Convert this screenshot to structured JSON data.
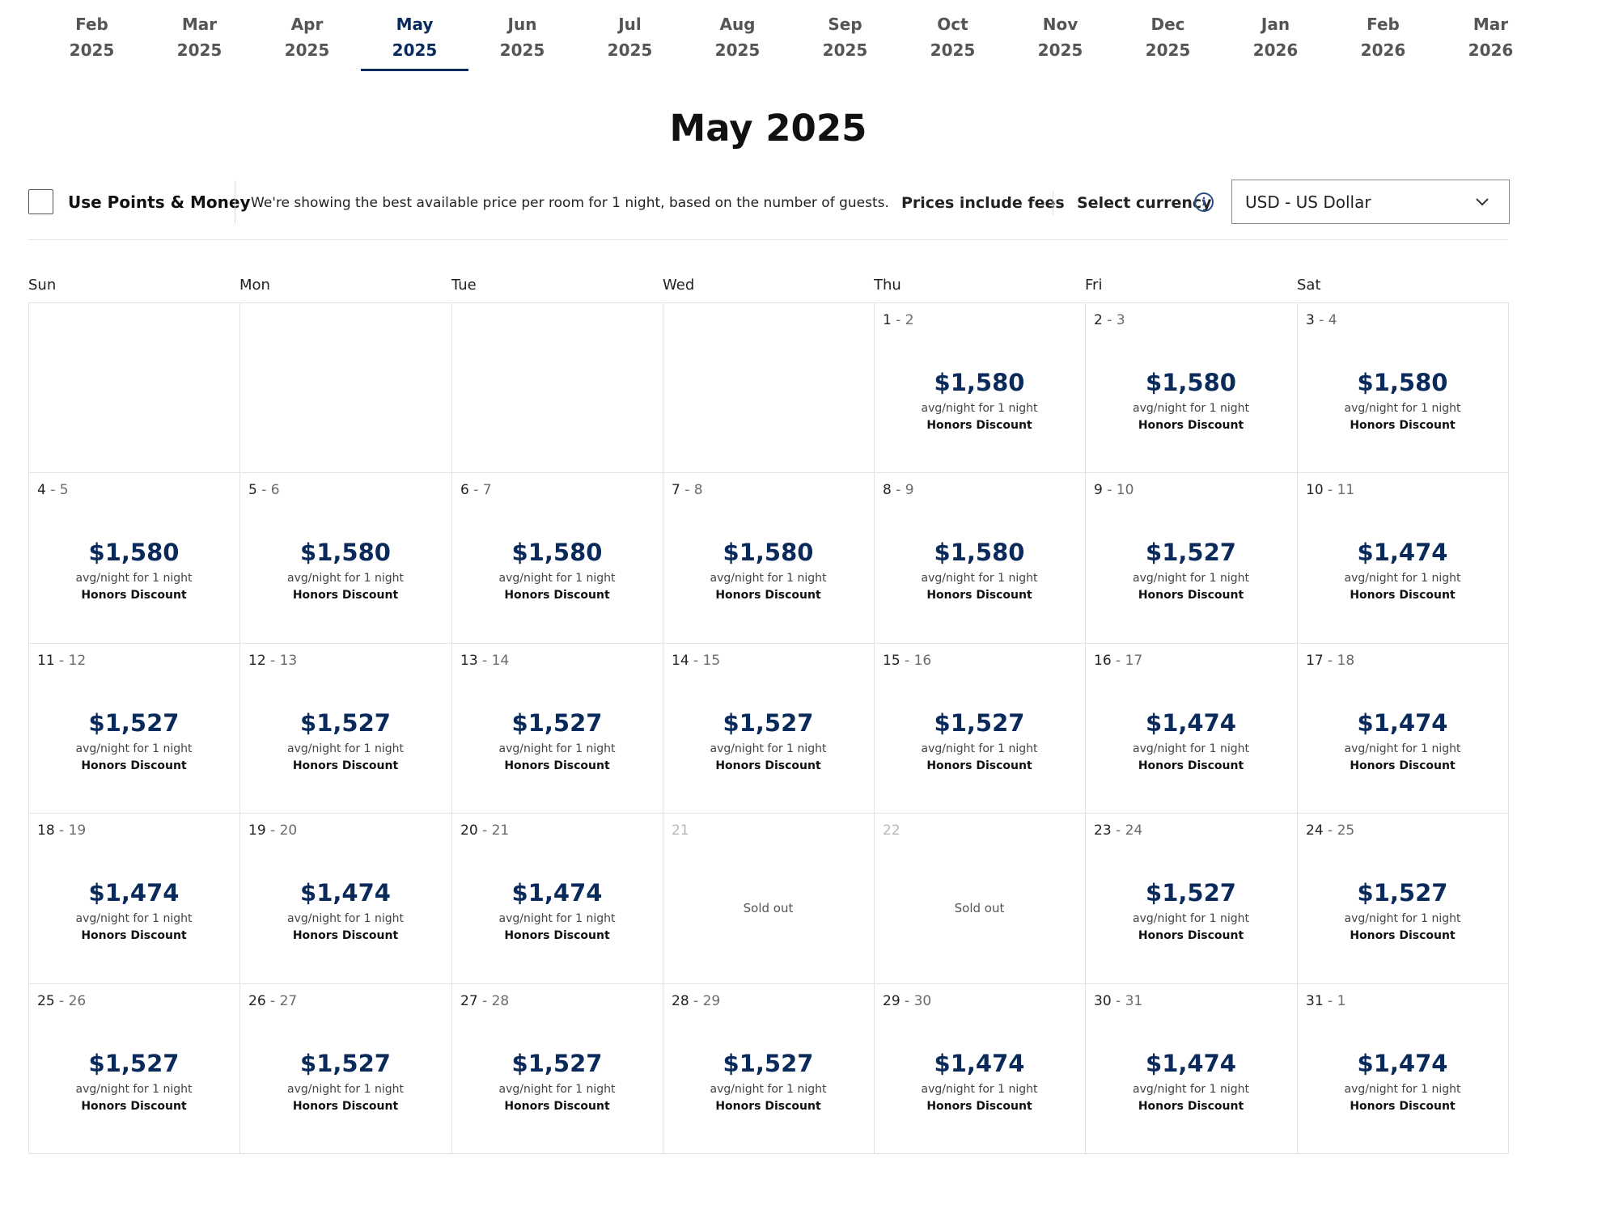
{
  "months": [
    {
      "name": "Feb",
      "year": "2025"
    },
    {
      "name": "Mar",
      "year": "2025"
    },
    {
      "name": "Apr",
      "year": "2025"
    },
    {
      "name": "May",
      "year": "2025"
    },
    {
      "name": "Jun",
      "year": "2025"
    },
    {
      "name": "Jul",
      "year": "2025"
    },
    {
      "name": "Aug",
      "year": "2025"
    },
    {
      "name": "Sep",
      "year": "2025"
    },
    {
      "name": "Oct",
      "year": "2025"
    },
    {
      "name": "Nov",
      "year": "2025"
    },
    {
      "name": "Dec",
      "year": "2025"
    },
    {
      "name": "Jan",
      "year": "2026"
    },
    {
      "name": "Feb",
      "year": "2026"
    },
    {
      "name": "Mar",
      "year": "2026"
    }
  ],
  "active_month_index": 3,
  "page_title": "May 2025",
  "options": {
    "points_money_label": "Use Points & Money",
    "points_money_checked": false,
    "info_text": "We're showing the best available price per room for 1 night, based on the number of guests.",
    "fees_text": "Prices include fees",
    "currency_label": "Select currency",
    "currency_value": "USD - US Dollar",
    "info_icon": "info-icon",
    "dropdown_icon": "chevron-down-icon"
  },
  "weekdays": [
    "Sun",
    "Mon",
    "Tue",
    "Wed",
    "Thu",
    "Fri",
    "Sat"
  ],
  "cell_avg_text": "avg/night for 1 night",
  "cell_discount_text": "Honors Discount",
  "sold_out_text": "Sold out",
  "leading_empty_cells": 4,
  "days": [
    {
      "checkin": "1",
      "checkout": "2",
      "price": "$1,580"
    },
    {
      "checkin": "2",
      "checkout": "3",
      "price": "$1,580"
    },
    {
      "checkin": "3",
      "checkout": "4",
      "price": "$1,580"
    },
    {
      "checkin": "4",
      "checkout": "5",
      "price": "$1,580"
    },
    {
      "checkin": "5",
      "checkout": "6",
      "price": "$1,580"
    },
    {
      "checkin": "6",
      "checkout": "7",
      "price": "$1,580"
    },
    {
      "checkin": "7",
      "checkout": "8",
      "price": "$1,580"
    },
    {
      "checkin": "8",
      "checkout": "9",
      "price": "$1,580"
    },
    {
      "checkin": "9",
      "checkout": "10",
      "price": "$1,527"
    },
    {
      "checkin": "10",
      "checkout": "11",
      "price": "$1,474"
    },
    {
      "checkin": "11",
      "checkout": "12",
      "price": "$1,527"
    },
    {
      "checkin": "12",
      "checkout": "13",
      "price": "$1,527"
    },
    {
      "checkin": "13",
      "checkout": "14",
      "price": "$1,527"
    },
    {
      "checkin": "14",
      "checkout": "15",
      "price": "$1,527"
    },
    {
      "checkin": "15",
      "checkout": "16",
      "price": "$1,527"
    },
    {
      "checkin": "16",
      "checkout": "17",
      "price": "$1,474"
    },
    {
      "checkin": "17",
      "checkout": "18",
      "price": "$1,474"
    },
    {
      "checkin": "18",
      "checkout": "19",
      "price": "$1,474"
    },
    {
      "checkin": "19",
      "checkout": "20",
      "price": "$1,474"
    },
    {
      "checkin": "20",
      "checkout": "21",
      "price": "$1,474"
    },
    {
      "checkin": "21",
      "checkout": null,
      "price": null,
      "sold_out": true
    },
    {
      "checkin": "22",
      "checkout": null,
      "price": null,
      "sold_out": true
    },
    {
      "checkin": "23",
      "checkout": "24",
      "price": "$1,527"
    },
    {
      "checkin": "24",
      "checkout": "25",
      "price": "$1,527"
    },
    {
      "checkin": "25",
      "checkout": "26",
      "price": "$1,527"
    },
    {
      "checkin": "26",
      "checkout": "27",
      "price": "$1,527"
    },
    {
      "checkin": "27",
      "checkout": "28",
      "price": "$1,527"
    },
    {
      "checkin": "28",
      "checkout": "29",
      "price": "$1,527"
    },
    {
      "checkin": "29",
      "checkout": "30",
      "price": "$1,474"
    },
    {
      "checkin": "30",
      "checkout": "31",
      "price": "$1,474"
    },
    {
      "checkin": "31",
      "checkout": "1",
      "price": "$1,474"
    }
  ],
  "colors": {
    "accent": "#0a2a5c",
    "price": "#0a2a5c",
    "grid_line": "#e2e2e2",
    "muted_text": "#6b6b6b",
    "sold_out_date": "#b8b8b8"
  }
}
